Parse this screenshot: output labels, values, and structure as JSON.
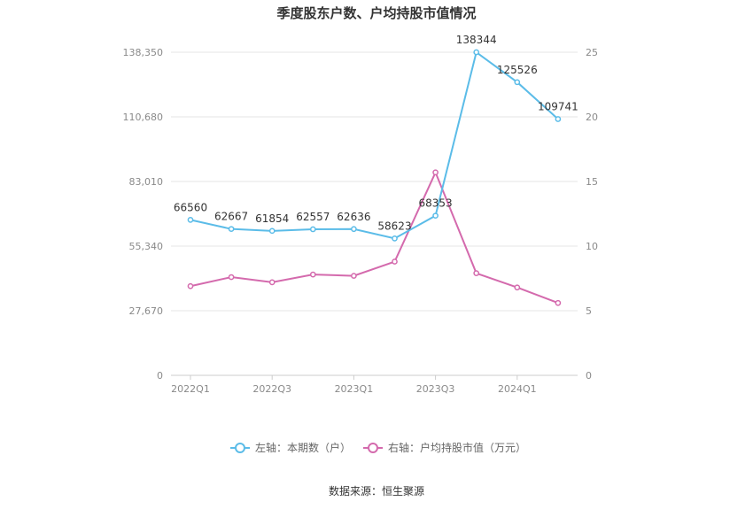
{
  "chart_data": {
    "type": "line",
    "title": "季度股东户数、户均持股市值情况",
    "source": "数据来源：恒生聚源",
    "x_tick_labels": [
      "2022Q1",
      "2022Q3",
      "2023Q1",
      "2023Q3",
      "2024Q1"
    ],
    "categories": [
      "2022Q1",
      "2022Q2",
      "2022Q3",
      "2022Q4",
      "2023Q1",
      "2023Q2",
      "2023Q3",
      "2023Q4",
      "2024Q1",
      "2024Q2"
    ],
    "left_axis": {
      "ticks": [
        "0",
        "27,670",
        "55,340",
        "83,010",
        "110,680",
        "138,350"
      ],
      "ylim": [
        0,
        138350
      ]
    },
    "right_axis": {
      "ticks": [
        "0",
        "5",
        "10",
        "15",
        "20",
        "25"
      ],
      "ylim": [
        0,
        25
      ]
    },
    "series": [
      {
        "name": "左轴：本期数（户）",
        "axis": "left",
        "color": "#5bbce8",
        "values": [
          66560,
          62667,
          61854,
          62557,
          62636,
          58623,
          68353,
          138344,
          125526,
          109741
        ],
        "labels": [
          "66560",
          "62667",
          "61854",
          "62557",
          "62636",
          "58623",
          "68353",
          "138344",
          "125526",
          "109741"
        ]
      },
      {
        "name": "右轴：户均持股市值（万元）",
        "axis": "right",
        "color": "#d46aad",
        "values": [
          6.9,
          7.6,
          7.2,
          7.8,
          7.7,
          8.8,
          15.7,
          7.9,
          6.8,
          5.6
        ]
      }
    ],
    "grid": true,
    "legend_position": "bottom"
  }
}
